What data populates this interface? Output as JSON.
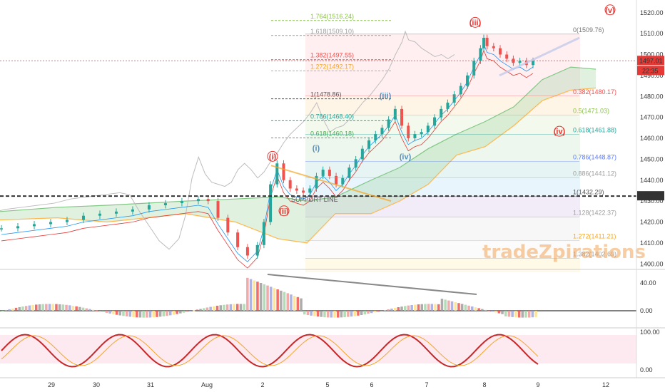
{
  "chart_data": {
    "type": "candlestick",
    "price_axis": {
      "range": [
        1395,
        1524
      ],
      "ticks": [
        "1520.00",
        "1510.00",
        "1500.00",
        "1490.00",
        "1480.00",
        "1470.00",
        "1460.00",
        "1450.00",
        "1440.00",
        "1430.00",
        "1420.00",
        "1410.00",
        "1400.00"
      ],
      "last_price_label": "1497.01",
      "countdown_label": "22:35",
      "support_price_label": "1432.37"
    },
    "time_axis": {
      "labels": [
        "29",
        "30",
        "31",
        "Aug",
        "2",
        "5",
        "6",
        "7",
        "8",
        "9",
        "12"
      ]
    },
    "close_series": [
      [
        0,
        1417
      ],
      [
        5,
        1418
      ],
      [
        10,
        1419
      ],
      [
        15,
        1420
      ],
      [
        20,
        1421
      ],
      [
        25,
        1423
      ],
      [
        30,
        1424
      ],
      [
        35,
        1425
      ],
      [
        40,
        1426
      ],
      [
        45,
        1428
      ],
      [
        50,
        1429
      ],
      [
        55,
        1430
      ],
      [
        60,
        1431
      ],
      [
        63,
        1430
      ],
      [
        66,
        1422
      ],
      [
        69,
        1415
      ],
      [
        72,
        1408
      ],
      [
        75,
        1404
      ],
      [
        78,
        1409
      ],
      [
        80,
        1420
      ],
      [
        82,
        1438
      ],
      [
        84,
        1448
      ],
      [
        86,
        1440
      ],
      [
        88,
        1436
      ],
      [
        90,
        1435
      ],
      [
        92,
        1434
      ],
      [
        94,
        1436
      ],
      [
        96,
        1442
      ],
      [
        98,
        1445
      ],
      [
        100,
        1442
      ],
      [
        102,
        1438
      ],
      [
        104,
        1441
      ],
      [
        106,
        1446
      ],
      [
        108,
        1450
      ],
      [
        110,
        1455
      ],
      [
        112,
        1459
      ],
      [
        114,
        1462
      ],
      [
        116,
        1465
      ],
      [
        118,
        1469
      ],
      [
        120,
        1474
      ],
      [
        122,
        1466
      ],
      [
        124,
        1460
      ],
      [
        126,
        1462
      ],
      [
        128,
        1463
      ],
      [
        130,
        1466
      ],
      [
        132,
        1470
      ],
      [
        134,
        1474
      ],
      [
        136,
        1477
      ],
      [
        138,
        1481
      ],
      [
        140,
        1485
      ],
      [
        142,
        1490
      ],
      [
        144,
        1497
      ],
      [
        146,
        1503
      ],
      [
        147,
        1508
      ],
      [
        148,
        1504
      ],
      [
        150,
        1503
      ],
      [
        152,
        1500
      ],
      [
        154,
        1498
      ],
      [
        156,
        1496
      ],
      [
        158,
        1497
      ],
      [
        160,
        1495
      ],
      [
        162,
        1497
      ]
    ],
    "indicators": {
      "momentum_axis": {
        "ticks": [
          "40.00",
          "0.00"
        ]
      },
      "stochastic_axis": {
        "ticks": [
          "100.00",
          "0.00"
        ]
      }
    },
    "fibonacci_levels": [
      {
        "label": "1.764(1516.24)",
        "price": 1516.24,
        "color": "#8bc34a"
      },
      {
        "label": "1.618(1509.10)",
        "price": 1509.1,
        "color": "#9e9e9e"
      },
      {
        "label": "1.382(1497.55)",
        "price": 1497.55,
        "color": "#ef5350"
      },
      {
        "label": "1.272(1492.17)",
        "price": 1492.17,
        "color": "#f5a623"
      },
      {
        "label": "1(1478.86)",
        "price": 1478.86,
        "color": "#555555"
      },
      {
        "label": "0.786(1468.40)",
        "price": 1468.4,
        "color": "#26a69a"
      },
      {
        "label": "0.618(1460.18)",
        "price": 1460.18,
        "color": "#4caf50"
      },
      {
        "label": "0(1509.76)",
        "price": 1509.76,
        "color": "#777777"
      },
      {
        "label": "0.382(1480.17)",
        "price": 1480.17,
        "color": "#ef5350"
      },
      {
        "label": "0.5(1471.03)",
        "price": 1471.03,
        "color": "#8bc34a"
      },
      {
        "label": "0.618(1461.88)",
        "price": 1461.88,
        "color": "#26a69a"
      },
      {
        "label": "0.786(1448.87)",
        "price": 1448.87,
        "color": "#5c7cfa"
      },
      {
        "label": "0.886(1441.12)",
        "price": 1441.12,
        "color": "#9e9e9e"
      },
      {
        "label": "1(1432.29)",
        "price": 1432.29,
        "color": "#555555"
      },
      {
        "label": "1.128(1422.37)",
        "price": 1422.37,
        "color": "#9e9e9e"
      },
      {
        "label": "1.272(1411.21)",
        "price": 1411.21,
        "color": "#f5a623"
      },
      {
        "label": "1.382(1402.69)",
        "price": 1402.69,
        "color": "#9e9e9e"
      }
    ],
    "wave_labels": [
      {
        "text": "(i)",
        "color": "#e53935",
        "circled": true
      },
      {
        "text": "(ii)",
        "color": "#e53935",
        "circled": true
      },
      {
        "text": "(iii)",
        "color": "#e53935",
        "circled": true
      },
      {
        "text": "(iv)",
        "color": "#e53935",
        "circled": true
      },
      {
        "text": "(v)",
        "color": "#e53935",
        "circled": true
      },
      {
        "text": "(i)",
        "color": "#5c8fb8",
        "circled": false
      },
      {
        "text": "(iii)",
        "color": "#5c8fb8",
        "circled": false
      },
      {
        "text": "(iv)",
        "color": "#5c8fb8",
        "circled": false
      }
    ],
    "annotations": {
      "support_line_label": "SUPPORT LINE",
      "watermark": "tradeZpirations"
    }
  }
}
